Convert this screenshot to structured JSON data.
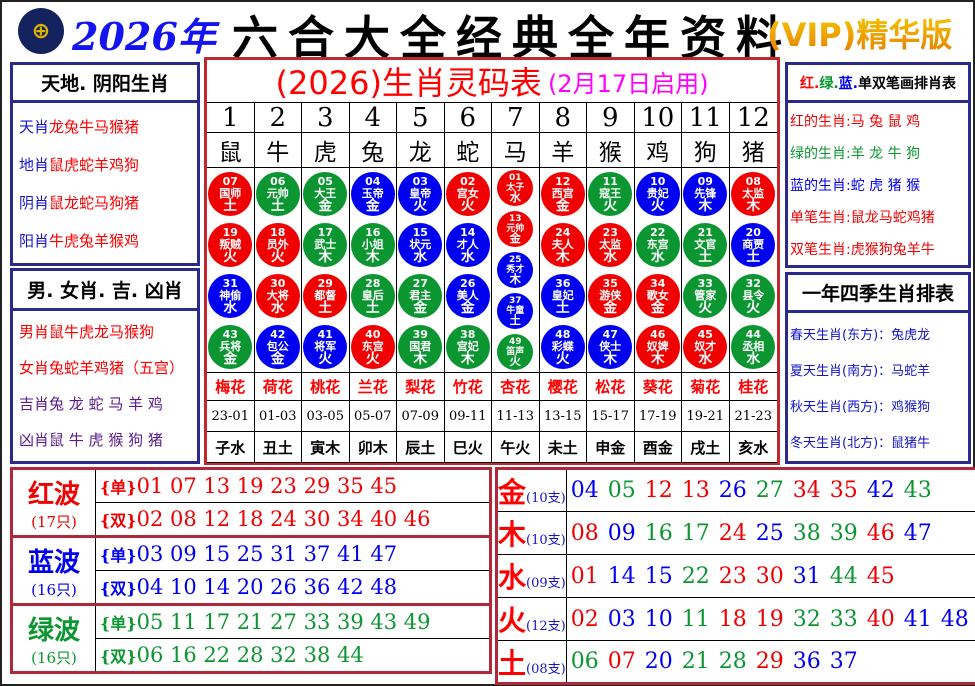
{
  "header": {
    "year": "2026年",
    "title": "六合大全经典全年资料",
    "vip": "(VIP)精华版",
    "logo_icon": "hkjc-emblem-icon"
  },
  "left": {
    "box1_title": "天地. 阴阳生肖",
    "box1_items": [
      {
        "k": "天肖",
        "v": "龙兔牛马猴猪"
      },
      {
        "k": "地肖",
        "v": "鼠虎蛇羊鸡狗"
      },
      {
        "k": "阴肖",
        "v": "鼠龙蛇马狗猪"
      },
      {
        "k": "阳肖",
        "v": "牛虎兔羊猴鸡"
      }
    ],
    "box2_title": "男. 女肖. 吉. 凶肖",
    "box2_items": [
      {
        "k": "男肖",
        "v": "鼠牛虎龙马猴狗"
      },
      {
        "k": "女肖",
        "v": "兔蛇羊鸡猪（五宫）"
      },
      {
        "k": "吉肖",
        "v": "兔 龙 蛇 马 羊 鸡"
      },
      {
        "k": "凶肖",
        "v": "鼠 牛 虎 猴 狗 猪"
      }
    ]
  },
  "center": {
    "title": "(2026)生肖灵码表",
    "subtitle": "(2月17日启用)",
    "numbers": [
      "1",
      "2",
      "3",
      "4",
      "5",
      "6",
      "7",
      "8",
      "9",
      "10",
      "11",
      "12"
    ],
    "zodiacs": [
      "鼠",
      "牛",
      "虎",
      "兔",
      "龙",
      "蛇",
      "马",
      "羊",
      "猴",
      "鸡",
      "狗",
      "猪"
    ],
    "flowers": [
      "梅花",
      "荷花",
      "桃花",
      "兰花",
      "梨花",
      "竹花",
      "杏花",
      "樱花",
      "松花",
      "葵花",
      "菊花",
      "桂花"
    ],
    "times": [
      "23-01",
      "01-03",
      "03-05",
      "05-07",
      "07-09",
      "09-11",
      "11-13",
      "13-15",
      "15-17",
      "17-19",
      "19-21",
      "21-23"
    ],
    "branches": [
      "子水",
      "丑土",
      "寅木",
      "卯木",
      "辰土",
      "巳火",
      "午火",
      "未土",
      "申金",
      "酉金",
      "戌土",
      "亥水"
    ],
    "colors": {
      "red": "#f00000",
      "green": "#0c9632",
      "blue": "#0000f0"
    },
    "balls": [
      [
        {
          "n": "07",
          "name": "国师",
          "el": "土",
          "c": "red"
        },
        {
          "n": "19",
          "name": "叛贼",
          "el": "火",
          "c": "red"
        },
        {
          "n": "31",
          "name": "神偷",
          "el": "水",
          "c": "blue"
        },
        {
          "n": "43",
          "name": "兵将",
          "el": "金",
          "c": "green"
        }
      ],
      [
        {
          "n": "06",
          "name": "元帅",
          "el": "土",
          "c": "green"
        },
        {
          "n": "18",
          "name": "员外",
          "el": "火",
          "c": "red"
        },
        {
          "n": "30",
          "name": "大将",
          "el": "水",
          "c": "red"
        },
        {
          "n": "42",
          "name": "包公",
          "el": "金",
          "c": "blue"
        }
      ],
      [
        {
          "n": "05",
          "name": "大王",
          "el": "金",
          "c": "green"
        },
        {
          "n": "17",
          "name": "武士",
          "el": "木",
          "c": "green"
        },
        {
          "n": "29",
          "name": "都督",
          "el": "土",
          "c": "red"
        },
        {
          "n": "41",
          "name": "将军",
          "el": "火",
          "c": "blue"
        }
      ],
      [
        {
          "n": "04",
          "name": "玉帝",
          "el": "金",
          "c": "blue"
        },
        {
          "n": "16",
          "name": "小姐",
          "el": "木",
          "c": "green"
        },
        {
          "n": "28",
          "name": "皇后",
          "el": "土",
          "c": "green"
        },
        {
          "n": "40",
          "name": "东宫",
          "el": "火",
          "c": "red"
        }
      ],
      [
        {
          "n": "03",
          "name": "皇帝",
          "el": "火",
          "c": "blue"
        },
        {
          "n": "15",
          "name": "状元",
          "el": "水",
          "c": "blue"
        },
        {
          "n": "27",
          "name": "君主",
          "el": "金",
          "c": "green"
        },
        {
          "n": "39",
          "name": "国君",
          "el": "木",
          "c": "green"
        }
      ],
      [
        {
          "n": "02",
          "name": "宫女",
          "el": "火",
          "c": "red"
        },
        {
          "n": "14",
          "name": "才人",
          "el": "水",
          "c": "blue"
        },
        {
          "n": "26",
          "name": "美人",
          "el": "金",
          "c": "blue"
        },
        {
          "n": "38",
          "name": "宫妃",
          "el": "木",
          "c": "green"
        }
      ],
      [
        {
          "n": "01",
          "name": "太子",
          "el": "水",
          "c": "red"
        },
        {
          "n": "13",
          "name": "元帅",
          "el": "金",
          "c": "red"
        },
        {
          "n": "25",
          "name": "秀才",
          "el": "木",
          "c": "blue"
        },
        {
          "n": "37",
          "name": "牛童",
          "el": "土",
          "c": "blue"
        },
        {
          "n": "49",
          "name": "笛声",
          "el": "火",
          "c": "green"
        }
      ],
      [
        {
          "n": "12",
          "name": "西宫",
          "el": "金",
          "c": "red"
        },
        {
          "n": "24",
          "name": "夫人",
          "el": "木",
          "c": "red"
        },
        {
          "n": "36",
          "name": "皇妃",
          "el": "土",
          "c": "blue"
        },
        {
          "n": "48",
          "name": "彩蝶",
          "el": "火",
          "c": "blue"
        }
      ],
      [
        {
          "n": "11",
          "name": "寇王",
          "el": "火",
          "c": "green"
        },
        {
          "n": "23",
          "name": "太监",
          "el": "水",
          "c": "red"
        },
        {
          "n": "35",
          "name": "游侠",
          "el": "金",
          "c": "red"
        },
        {
          "n": "47",
          "name": "侠士",
          "el": "木",
          "c": "blue"
        }
      ],
      [
        {
          "n": "10",
          "name": "贵妃",
          "el": "火",
          "c": "blue"
        },
        {
          "n": "22",
          "name": "东宫",
          "el": "水",
          "c": "green"
        },
        {
          "n": "34",
          "name": "歌女",
          "el": "金",
          "c": "red"
        },
        {
          "n": "46",
          "name": "奴婢",
          "el": "木",
          "c": "red"
        }
      ],
      [
        {
          "n": "09",
          "name": "先锋",
          "el": "木",
          "c": "blue"
        },
        {
          "n": "21",
          "name": "文官",
          "el": "土",
          "c": "green"
        },
        {
          "n": "33",
          "name": "管家",
          "el": "火",
          "c": "green"
        },
        {
          "n": "45",
          "name": "奴才",
          "el": "水",
          "c": "red"
        }
      ],
      [
        {
          "n": "08",
          "name": "太监",
          "el": "木",
          "c": "red"
        },
        {
          "n": "20",
          "name": "商贾",
          "el": "土",
          "c": "blue"
        },
        {
          "n": "32",
          "name": "县令",
          "el": "火",
          "c": "green"
        },
        {
          "n": "44",
          "name": "丞相",
          "el": "水",
          "c": "green"
        }
      ]
    ]
  },
  "right": {
    "box1_title": {
      "r": "红.",
      "g": "绿.",
      "b": "蓝.",
      "rest": "单双笔画排肖表"
    },
    "box1_items": [
      {
        "k": "红的生肖:",
        "v": "马 兔 鼠 鸡",
        "c": "red"
      },
      {
        "k": "绿的生肖:",
        "v": "羊 龙 牛 狗",
        "c": "green"
      },
      {
        "k": "蓝的生肖:",
        "v": "蛇 虎 猪 猴",
        "c": "blue"
      },
      {
        "k": "单笔生肖:",
        "v": "鼠龙马蛇鸡猪",
        "c": "red"
      },
      {
        "k": "双笔生肖:",
        "v": "虎猴狗兔羊牛",
        "c": "red"
      }
    ],
    "box2_title": "一年四季生肖排表",
    "box2_items": [
      {
        "k": "春天生肖(东方)",
        "v": "：兔虎龙"
      },
      {
        "k": "夏天生肖(南方)",
        "v": "：马蛇羊"
      },
      {
        "k": "秋天生肖(西方)",
        "v": "：鸡猴狗"
      },
      {
        "k": "冬天生肖(北方)",
        "v": "：鼠猪牛"
      }
    ]
  },
  "waves": [
    {
      "name": "红波",
      "count": "(17只)",
      "c": "red",
      "rows": [
        {
          "tag": "{单}",
          "nums": "01 07 13 19 23 29 35 45"
        },
        {
          "tag": "{双}",
          "nums": "02 08 12 18 24 30 34 40 46"
        }
      ]
    },
    {
      "name": "蓝波",
      "count": "(16只)",
      "c": "blue",
      "rows": [
        {
          "tag": "{单}",
          "nums": "03 09 15 25 31 37 41 47"
        },
        {
          "tag": "{双}",
          "nums": "04 10 14 20 26 36 42 48"
        }
      ]
    },
    {
      "name": "绿波",
      "count": "(16只)",
      "c": "green",
      "rows": [
        {
          "tag": "{单}",
          "nums": "05 11 17 21 27 33 39 43 49"
        },
        {
          "tag": "{双}",
          "nums": "06 16 22 28 32 38 44"
        }
      ]
    }
  ],
  "wuxing": [
    {
      "el": "金",
      "count": "(10支)",
      "nums": [
        "04",
        "05",
        "12",
        "13",
        "26",
        "27",
        "34",
        "35",
        "42",
        "43"
      ]
    },
    {
      "el": "木",
      "count": "(10支)",
      "nums": [
        "08",
        "09",
        "16",
        "17",
        "24",
        "25",
        "38",
        "39",
        "46",
        "47"
      ]
    },
    {
      "el": "水",
      "count": "(09支)",
      "nums": [
        "01",
        "14",
        "15",
        "22",
        "23",
        "30",
        "31",
        "44",
        "45"
      ]
    },
    {
      "el": "火",
      "count": "(12支)",
      "nums": [
        "02",
        "03",
        "10",
        "11",
        "18",
        "19",
        "32",
        "33",
        "40",
        "41",
        "48",
        "49"
      ]
    },
    {
      "el": "土",
      "count": "(08支)",
      "nums": [
        "06",
        "07",
        "20",
        "21",
        "28",
        "29",
        "36",
        "37"
      ]
    }
  ]
}
